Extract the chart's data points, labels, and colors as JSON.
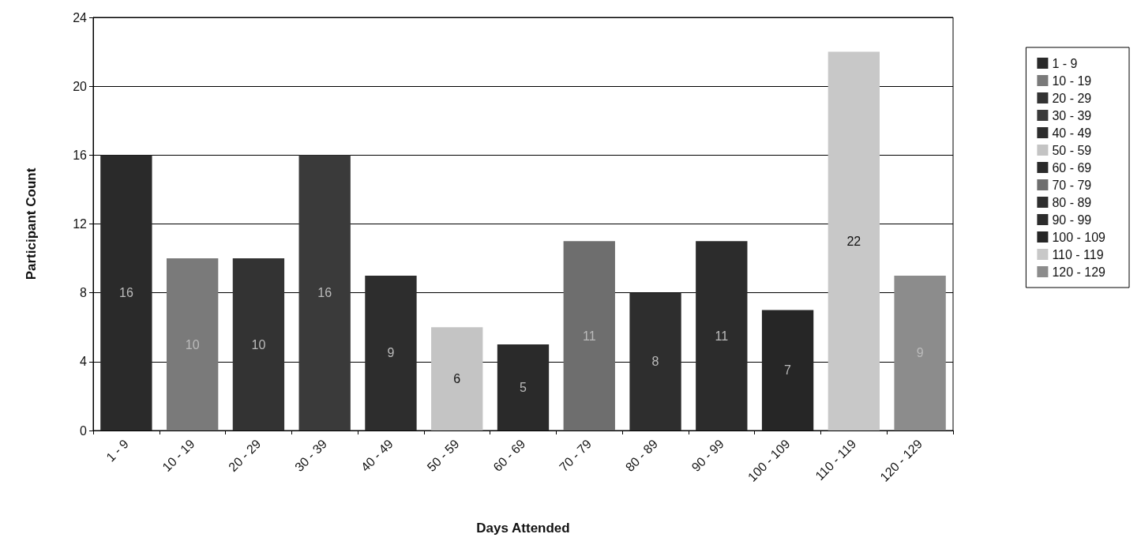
{
  "chart_data": {
    "type": "bar",
    "xlabel": "Days Attended",
    "ylabel": "Participant Count",
    "categories": [
      "1 - 9",
      "10 - 19",
      "20 - 29",
      "30 - 39",
      "40 - 49",
      "50 - 59",
      "60 - 69",
      "70 - 79",
      "80 - 89",
      "90 - 99",
      "100 - 109",
      "110 - 119",
      "120 - 129"
    ],
    "series": [
      {
        "name": "1 - 9",
        "color": "#2a2a2a",
        "values": [
          16,
          null,
          null,
          null,
          null,
          null,
          null,
          null,
          null,
          null,
          null,
          null,
          null
        ]
      },
      {
        "name": "10 - 19",
        "color": "#7a7a7a",
        "values": [
          null,
          10,
          null,
          null,
          null,
          null,
          null,
          null,
          null,
          null,
          null,
          null,
          null
        ]
      },
      {
        "name": "20 - 29",
        "color": "#333333",
        "values": [
          null,
          null,
          10,
          null,
          null,
          null,
          null,
          null,
          null,
          null,
          null,
          null,
          null
        ]
      },
      {
        "name": "30 - 39",
        "color": "#3a3a3a",
        "values": [
          null,
          null,
          null,
          16,
          null,
          null,
          null,
          null,
          null,
          null,
          null,
          null,
          null
        ]
      },
      {
        "name": "40 - 49",
        "color": "#2d2d2d",
        "values": [
          null,
          null,
          null,
          null,
          9,
          null,
          null,
          null,
          null,
          null,
          null,
          null,
          null
        ]
      },
      {
        "name": "50 - 59",
        "color": "#c4c4c4",
        "values": [
          null,
          null,
          null,
          null,
          null,
          6,
          null,
          null,
          null,
          null,
          null,
          null,
          null
        ]
      },
      {
        "name": "60 - 69",
        "color": "#2a2a2a",
        "values": [
          null,
          null,
          null,
          null,
          null,
          null,
          5,
          null,
          null,
          null,
          null,
          null,
          null
        ]
      },
      {
        "name": "70 - 79",
        "color": "#6e6e6e",
        "values": [
          null,
          null,
          null,
          null,
          null,
          null,
          null,
          11,
          null,
          null,
          null,
          null,
          null
        ]
      },
      {
        "name": "80 - 89",
        "color": "#2e2e2e",
        "values": [
          null,
          null,
          null,
          null,
          null,
          null,
          null,
          null,
          8,
          null,
          null,
          null,
          null
        ]
      },
      {
        "name": "90 - 99",
        "color": "#2c2c2c",
        "values": [
          null,
          null,
          null,
          null,
          null,
          null,
          null,
          null,
          null,
          11,
          null,
          null,
          null
        ]
      },
      {
        "name": "100 - 109",
        "color": "#262626",
        "values": [
          null,
          null,
          null,
          null,
          null,
          null,
          null,
          null,
          null,
          null,
          7,
          null,
          null
        ]
      },
      {
        "name": "110 - 119",
        "color": "#c8c8c8",
        "values": [
          null,
          null,
          null,
          null,
          null,
          null,
          null,
          null,
          null,
          null,
          null,
          22,
          null
        ]
      },
      {
        "name": "120 - 129",
        "color": "#8c8c8c",
        "values": [
          null,
          null,
          null,
          null,
          null,
          null,
          null,
          null,
          null,
          null,
          null,
          null,
          9
        ]
      }
    ],
    "ylim": [
      0,
      24
    ],
    "yticks": [
      0,
      4,
      8,
      12,
      16,
      20,
      24
    ],
    "grid": "y",
    "legend": "right",
    "data_labels": true
  }
}
